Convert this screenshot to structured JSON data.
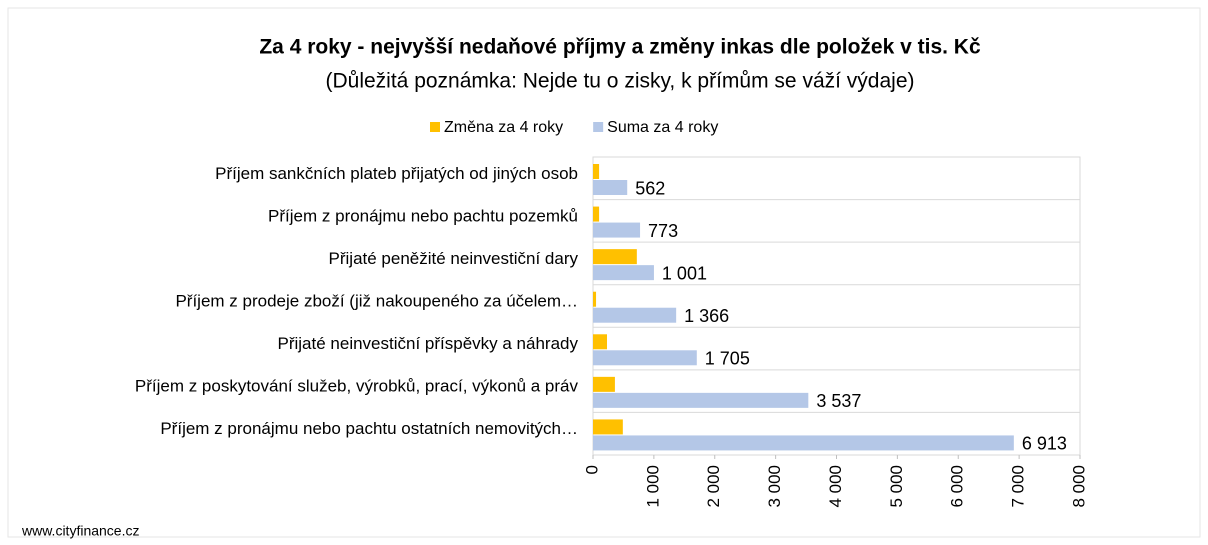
{
  "chart_data": {
    "type": "bar",
    "orientation": "horizontal",
    "title": "Za 4 roky - nejvyšší nedaňové příjmy a změny inkas dle položek v tis. Kč",
    "subtitle": "(Důležitá poznámka: Nejde tu o zisky, k přímům se váží výdaje)",
    "categories": [
      "Příjem sankčních plateb přijatých od jiných osob",
      "Příjem z pronájmu nebo pachtu pozemků",
      "Přijaté peněžité neinvestiční dary",
      "Příjem z prodeje zboží (již nakoupeného za účelem…",
      "Přijaté neinvestiční příspěvky a náhrady",
      "Příjem z poskytování služeb, výrobků, prací, výkonů a práv",
      "Příjem z pronájmu nebo pachtu ostatních nemovitých…"
    ],
    "series": [
      {
        "name": "Změna za 4 roky",
        "color": "#ffc000",
        "values": [
          100,
          100,
          720,
          50,
          230,
          360,
          490
        ]
      },
      {
        "name": "Suma za 4 roky",
        "color": "#b4c7e7",
        "values": [
          562,
          773,
          1001,
          1366,
          1705,
          3537,
          6913
        ],
        "value_labels": [
          "562",
          "773",
          "1 001",
          "1 366",
          "1 705",
          "3 537",
          "6 913"
        ]
      }
    ],
    "xlim": [
      0,
      8000
    ],
    "xticks": [
      0,
      {
        "value": 1000,
        "label": "1 000"
      },
      {
        "value": 2000,
        "label": "2 000"
      },
      {
        "value": 3000,
        "label": "3 000"
      },
      {
        "value": 4000,
        "label": "4 000"
      },
      {
        "value": 5000,
        "label": "5 000"
      },
      {
        "value": 6000,
        "label": "6 000"
      },
      {
        "value": 7000,
        "label": "7 000"
      },
      {
        "value": 8000,
        "label": "8 000"
      }
    ],
    "legend": "top",
    "footer": "www.cityfinance.cz"
  }
}
